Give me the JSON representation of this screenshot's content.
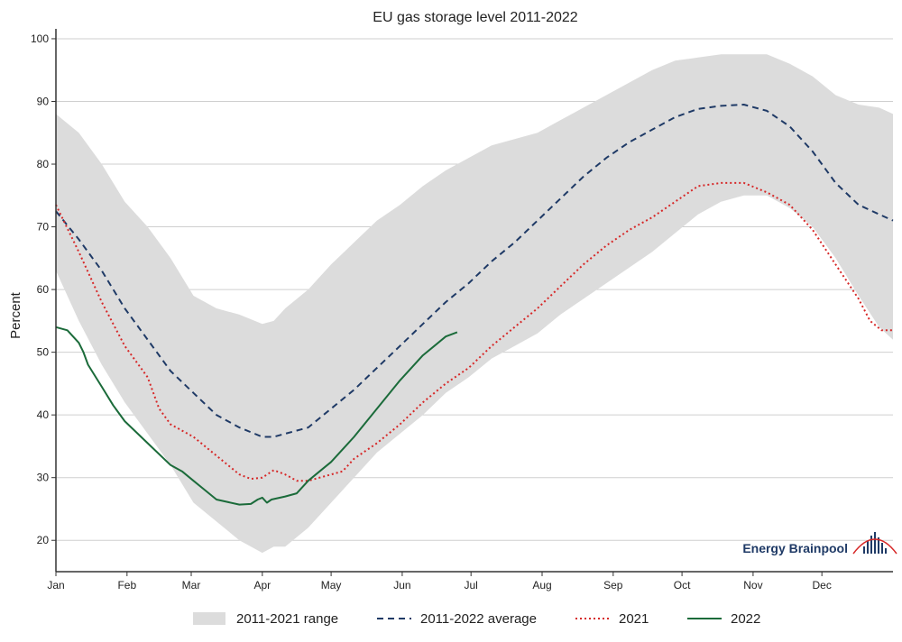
{
  "chart_data": {
    "type": "line",
    "title": "EU gas storage level 2011-2022",
    "ylabel": "Percent",
    "xlabel": "",
    "ylim": [
      15,
      101
    ],
    "yticks": [
      20,
      30,
      40,
      50,
      60,
      70,
      80,
      90,
      100
    ],
    "xticks": [
      {
        "label": "Jan",
        "day": 0
      },
      {
        "label": "Feb",
        "day": 31
      },
      {
        "label": "Mar",
        "day": 59
      },
      {
        "label": "Apr",
        "day": 90
      },
      {
        "label": "May",
        "day": 120
      },
      {
        "label": "Jun",
        "day": 151
      },
      {
        "label": "Jul",
        "day": 181
      },
      {
        "label": "Aug",
        "day": 212
      },
      {
        "label": "Sep",
        "day": 243
      },
      {
        "label": "Oct",
        "day": 273
      },
      {
        "label": "Nov",
        "day": 304
      },
      {
        "label": "Dec",
        "day": 334
      }
    ],
    "xlim": [
      0,
      365
    ],
    "grid": true,
    "legend_position": "bottom",
    "series": [
      {
        "name": "2011-2021 range",
        "kind": "band",
        "color": "#dcdcdc",
        "upper": [
          [
            0,
            88
          ],
          [
            10,
            85
          ],
          [
            20,
            80
          ],
          [
            30,
            74
          ],
          [
            40,
            70
          ],
          [
            50,
            65
          ],
          [
            60,
            59
          ],
          [
            70,
            57
          ],
          [
            80,
            56
          ],
          [
            90,
            54.5
          ],
          [
            95,
            55
          ],
          [
            100,
            57
          ],
          [
            110,
            60
          ],
          [
            120,
            64
          ],
          [
            130,
            67.5
          ],
          [
            140,
            71
          ],
          [
            150,
            73.5
          ],
          [
            160,
            76.5
          ],
          [
            170,
            79
          ],
          [
            180,
            81
          ],
          [
            190,
            83
          ],
          [
            200,
            84
          ],
          [
            210,
            85
          ],
          [
            220,
            87
          ],
          [
            230,
            89
          ],
          [
            240,
            91
          ],
          [
            250,
            93
          ],
          [
            260,
            95
          ],
          [
            270,
            96.5
          ],
          [
            280,
            97
          ],
          [
            290,
            97.5
          ],
          [
            300,
            97.5
          ],
          [
            310,
            97.5
          ],
          [
            320,
            96
          ],
          [
            330,
            94
          ],
          [
            340,
            91
          ],
          [
            350,
            89.5
          ],
          [
            359,
            89
          ],
          [
            365,
            88
          ]
        ],
        "lower": [
          [
            0,
            63
          ],
          [
            10,
            55
          ],
          [
            20,
            48
          ],
          [
            30,
            42
          ],
          [
            40,
            37
          ],
          [
            50,
            32
          ],
          [
            60,
            26
          ],
          [
            70,
            23
          ],
          [
            80,
            20
          ],
          [
            90,
            18
          ],
          [
            95,
            19
          ],
          [
            100,
            19
          ],
          [
            110,
            22
          ],
          [
            120,
            26
          ],
          [
            130,
            30
          ],
          [
            140,
            34
          ],
          [
            150,
            37
          ],
          [
            160,
            40
          ],
          [
            170,
            43.5
          ],
          [
            180,
            46
          ],
          [
            190,
            49
          ],
          [
            200,
            51
          ],
          [
            210,
            53
          ],
          [
            220,
            56
          ],
          [
            230,
            58.5
          ],
          [
            240,
            61
          ],
          [
            250,
            63.5
          ],
          [
            260,
            66
          ],
          [
            270,
            69
          ],
          [
            280,
            72
          ],
          [
            290,
            74
          ],
          [
            300,
            75
          ],
          [
            310,
            75
          ],
          [
            320,
            73
          ],
          [
            330,
            70
          ],
          [
            340,
            65
          ],
          [
            350,
            59
          ],
          [
            359,
            54
          ],
          [
            365,
            52
          ]
        ]
      },
      {
        "name": "2011-2022 average",
        "kind": "line",
        "color": "#1f3a66",
        "dash": "7,5",
        "points": [
          [
            0,
            72.5
          ],
          [
            10,
            68
          ],
          [
            20,
            63
          ],
          [
            30,
            57
          ],
          [
            40,
            52
          ],
          [
            50,
            47
          ],
          [
            60,
            43.5
          ],
          [
            70,
            40
          ],
          [
            80,
            38
          ],
          [
            90,
            36.5
          ],
          [
            95,
            36.5
          ],
          [
            100,
            37
          ],
          [
            110,
            38
          ],
          [
            120,
            41
          ],
          [
            130,
            44
          ],
          [
            140,
            47.5
          ],
          [
            150,
            51
          ],
          [
            160,
            54.5
          ],
          [
            170,
            58
          ],
          [
            180,
            61
          ],
          [
            190,
            64.5
          ],
          [
            200,
            67.5
          ],
          [
            210,
            71
          ],
          [
            220,
            74.5
          ],
          [
            230,
            78
          ],
          [
            240,
            81
          ],
          [
            250,
            83.5
          ],
          [
            260,
            85.5
          ],
          [
            270,
            87.5
          ],
          [
            280,
            88.8
          ],
          [
            290,
            89.3
          ],
          [
            300,
            89.5
          ],
          [
            310,
            88.5
          ],
          [
            320,
            86
          ],
          [
            330,
            82
          ],
          [
            340,
            77
          ],
          [
            350,
            73.5
          ],
          [
            359,
            72
          ],
          [
            365,
            71
          ]
        ]
      },
      {
        "name": "2021",
        "kind": "line",
        "color": "#d62828",
        "dash": "2,3",
        "points": [
          [
            0,
            73.5
          ],
          [
            10,
            66
          ],
          [
            20,
            58
          ],
          [
            30,
            51
          ],
          [
            40,
            46
          ],
          [
            45,
            41
          ],
          [
            50,
            38.5
          ],
          [
            60,
            36.5
          ],
          [
            70,
            33.5
          ],
          [
            80,
            30.5
          ],
          [
            85,
            29.8
          ],
          [
            90,
            30
          ],
          [
            95,
            31.2
          ],
          [
            100,
            30.5
          ],
          [
            105,
            29.5
          ],
          [
            110,
            29.5
          ],
          [
            115,
            30
          ],
          [
            120,
            30.5
          ],
          [
            125,
            31
          ],
          [
            130,
            33
          ],
          [
            140,
            35.5
          ],
          [
            150,
            38.5
          ],
          [
            160,
            42
          ],
          [
            170,
            45
          ],
          [
            180,
            47.5
          ],
          [
            190,
            51
          ],
          [
            200,
            54
          ],
          [
            210,
            57
          ],
          [
            220,
            60.5
          ],
          [
            230,
            64
          ],
          [
            240,
            67
          ],
          [
            250,
            69.5
          ],
          [
            260,
            71.5
          ],
          [
            270,
            74
          ],
          [
            280,
            76.5
          ],
          [
            290,
            77
          ],
          [
            300,
            77
          ],
          [
            310,
            75.5
          ],
          [
            320,
            73.5
          ],
          [
            330,
            69.5
          ],
          [
            340,
            64
          ],
          [
            350,
            58.5
          ],
          [
            355,
            55
          ],
          [
            360,
            53.5
          ],
          [
            365,
            53.5
          ]
        ]
      },
      {
        "name": "2022",
        "kind": "line",
        "color": "#1b6b3a",
        "points": [
          [
            0,
            54
          ],
          [
            5,
            53.5
          ],
          [
            10,
            51.5
          ],
          [
            12,
            50
          ],
          [
            14,
            48
          ],
          [
            20,
            44.5
          ],
          [
            25,
            41.5
          ],
          [
            30,
            39
          ],
          [
            40,
            35.5
          ],
          [
            50,
            32
          ],
          [
            55,
            31
          ],
          [
            60,
            29.5
          ],
          [
            65,
            28
          ],
          [
            70,
            26.5
          ],
          [
            80,
            25.7
          ],
          [
            85,
            25.8
          ],
          [
            88,
            26.5
          ],
          [
            90,
            26.8
          ],
          [
            92,
            26
          ],
          [
            94,
            26.5
          ],
          [
            100,
            27
          ],
          [
            105,
            27.5
          ],
          [
            110,
            29.5
          ],
          [
            115,
            31
          ],
          [
            120,
            32.5
          ],
          [
            130,
            36.5
          ],
          [
            140,
            41
          ],
          [
            150,
            45.5
          ],
          [
            160,
            49.5
          ],
          [
            165,
            51
          ],
          [
            170,
            52.5
          ],
          [
            175,
            53.2
          ]
        ]
      }
    ]
  },
  "branding": {
    "logo_text": "Energy Brainpool"
  }
}
